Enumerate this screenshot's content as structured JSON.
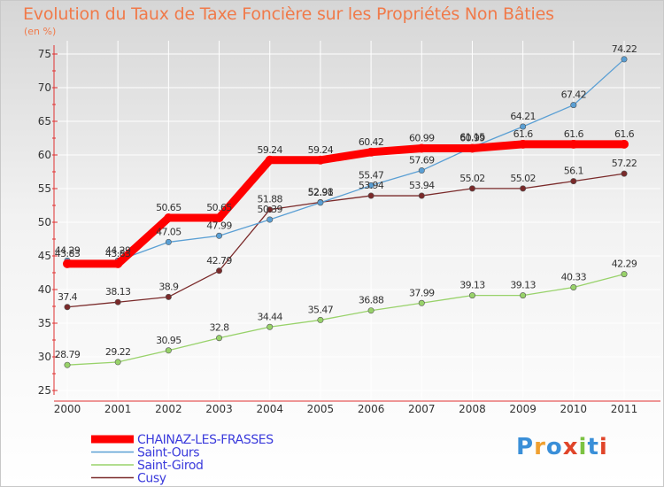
{
  "title": "Evolution du Taux de Taxe Foncière sur les Propriétés Non Bâties",
  "unit": "(en %)",
  "logo": {
    "text": "Proxiti",
    "colors": [
      "#3a8fd8",
      "#f0a030",
      "#3a8fd8",
      "#e0452a",
      "#7cc242",
      "#3a8fd8",
      "#e0452a"
    ]
  },
  "chart_data": {
    "type": "line",
    "x": [
      "2000",
      "2001",
      "2002",
      "2003",
      "2004",
      "2005",
      "2006",
      "2007",
      "2008",
      "2009",
      "2010",
      "2011"
    ],
    "ylim": [
      25,
      75
    ],
    "yticks": [
      "25",
      "30",
      "35",
      "40",
      "45",
      "50",
      "55",
      "60",
      "65",
      "70",
      "75"
    ],
    "grid": true,
    "legend": "bottom-left",
    "series": [
      {
        "name": "CHAINAZ-LES-FRASSES",
        "color": "#ff0000",
        "values": [
          43.83,
          43.83,
          50.65,
          50.65,
          59.24,
          59.24,
          60.42,
          60.99,
          60.99,
          61.6,
          61.6,
          61.6
        ],
        "labels": [
          "43.83",
          "43.83",
          "50.65",
          "50.65",
          "59.24",
          "59.24",
          "60.42",
          "60.99",
          "60.99",
          "61.6",
          "61.6",
          "61.6"
        ]
      },
      {
        "name": "Saint-Ours",
        "color": "#5a9fd4",
        "values": [
          44.29,
          44.29,
          47.05,
          47.99,
          50.39,
          52.91,
          55.47,
          57.69,
          61.15,
          64.21,
          67.42,
          74.22
        ],
        "labels": [
          "44.29",
          "44.29",
          "47.05",
          "47.99",
          "50.39",
          "52.91",
          "55.47",
          "57.69",
          "61.15",
          "64.21",
          "67.42",
          "74.22"
        ]
      },
      {
        "name": "Saint-Girod",
        "color": "#98d26a",
        "values": [
          28.79,
          29.22,
          30.95,
          32.8,
          34.44,
          35.47,
          36.88,
          37.99,
          39.13,
          39.13,
          40.33,
          42.29
        ],
        "labels": [
          "28.79",
          "29.22",
          "30.95",
          "32.8",
          "34.44",
          "35.47",
          "36.88",
          "37.99",
          "39.13",
          "39.13",
          "40.33",
          "42.29"
        ]
      },
      {
        "name": "Cusy",
        "color": "#7a2a2a",
        "values": [
          37.4,
          38.13,
          38.9,
          42.79,
          51.88,
          52.98,
          53.94,
          53.94,
          55.02,
          55.02,
          56.1,
          57.22
        ],
        "labels": [
          "37.4",
          "38.13",
          "38.9",
          "42.79",
          "51.88",
          "52.98",
          "53.94",
          "53.94",
          "55.02",
          "55.02",
          "56.1",
          "57.22"
        ]
      }
    ]
  }
}
